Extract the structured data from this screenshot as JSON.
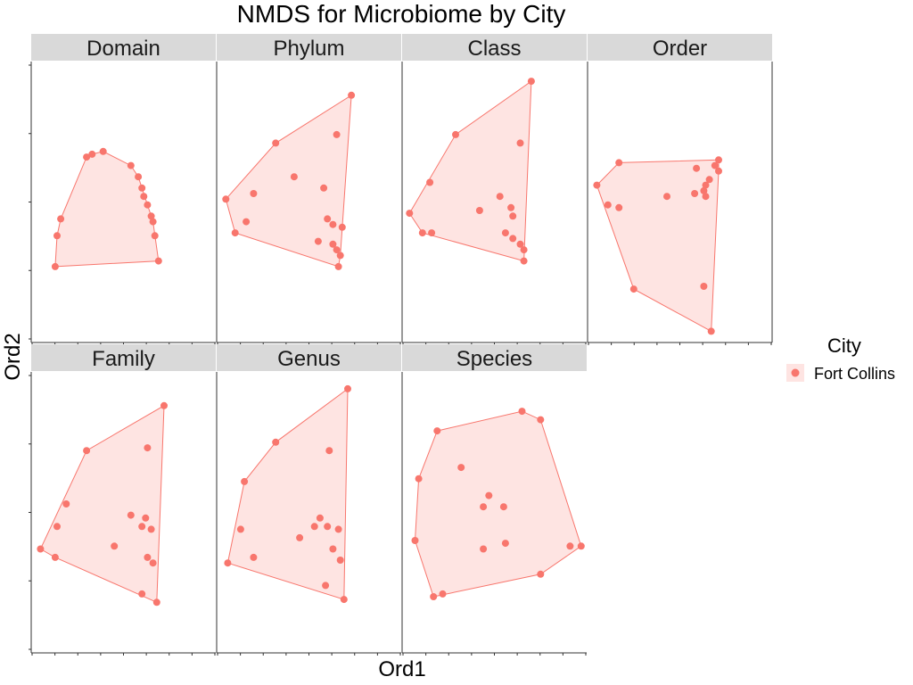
{
  "chart_data": {
    "type": "scatter",
    "title": "NMDS for Microbiome by City",
    "xlabel": "Ord1",
    "ylabel": "Ord2",
    "xlim": [
      0,
      1
    ],
    "ylim": [
      0,
      1
    ],
    "legend": {
      "title": "City",
      "placement": "right",
      "entries": [
        {
          "label": "Fort Collins",
          "color": "#F8766D"
        }
      ]
    },
    "hull_fill": "#F8766D",
    "hull_fill_opacity": 0.2,
    "point_color": "#F8766D",
    "panels": [
      {
        "name": "Domain",
        "points": [
          [
            0.13,
            0.27
          ],
          [
            0.14,
            0.38
          ],
          [
            0.16,
            0.44
          ],
          [
            0.3,
            0.66
          ],
          [
            0.33,
            0.67
          ],
          [
            0.39,
            0.68
          ],
          [
            0.54,
            0.63
          ],
          [
            0.58,
            0.59
          ],
          [
            0.6,
            0.55
          ],
          [
            0.61,
            0.52
          ],
          [
            0.63,
            0.49
          ],
          [
            0.65,
            0.45
          ],
          [
            0.66,
            0.43
          ],
          [
            0.67,
            0.38
          ],
          [
            0.69,
            0.29
          ]
        ]
      },
      {
        "name": "Phylum",
        "points": [
          [
            0.05,
            0.51
          ],
          [
            0.1,
            0.39
          ],
          [
            0.16,
            0.43
          ],
          [
            0.2,
            0.53
          ],
          [
            0.32,
            0.71
          ],
          [
            0.42,
            0.59
          ],
          [
            0.58,
            0.55
          ],
          [
            0.6,
            0.44
          ],
          [
            0.63,
            0.42
          ],
          [
            0.55,
            0.36
          ],
          [
            0.63,
            0.35
          ],
          [
            0.65,
            0.33
          ],
          [
            0.68,
            0.41
          ],
          [
            0.67,
            0.31
          ],
          [
            0.66,
            0.27
          ],
          [
            0.65,
            0.74
          ],
          [
            0.73,
            0.88
          ]
        ]
      },
      {
        "name": "Class",
        "points": [
          [
            0.04,
            0.46
          ],
          [
            0.11,
            0.39
          ],
          [
            0.16,
            0.39
          ],
          [
            0.15,
            0.57
          ],
          [
            0.29,
            0.74
          ],
          [
            0.42,
            0.47
          ],
          [
            0.53,
            0.52
          ],
          [
            0.56,
            0.39
          ],
          [
            0.59,
            0.48
          ],
          [
            0.6,
            0.45
          ],
          [
            0.6,
            0.37
          ],
          [
            0.64,
            0.35
          ],
          [
            0.66,
            0.33
          ],
          [
            0.66,
            0.29
          ],
          [
            0.64,
            0.71
          ],
          [
            0.7,
            0.93
          ]
        ]
      },
      {
        "name": "Order",
        "points": [
          [
            0.05,
            0.56
          ],
          [
            0.11,
            0.49
          ],
          [
            0.17,
            0.48
          ],
          [
            0.17,
            0.64
          ],
          [
            0.43,
            0.52
          ],
          [
            0.58,
            0.53
          ],
          [
            0.59,
            0.62
          ],
          [
            0.63,
            0.54
          ],
          [
            0.64,
            0.52
          ],
          [
            0.64,
            0.56
          ],
          [
            0.66,
            0.58
          ],
          [
            0.69,
            0.63
          ],
          [
            0.71,
            0.65
          ],
          [
            0.71,
            0.61
          ],
          [
            0.25,
            0.19
          ],
          [
            0.63,
            0.2
          ],
          [
            0.67,
            0.04
          ]
        ]
      },
      {
        "name": "Family",
        "points": [
          [
            0.05,
            0.37
          ],
          [
            0.13,
            0.34
          ],
          [
            0.14,
            0.45
          ],
          [
            0.19,
            0.53
          ],
          [
            0.3,
            0.72
          ],
          [
            0.45,
            0.38
          ],
          [
            0.54,
            0.49
          ],
          [
            0.6,
            0.45
          ],
          [
            0.62,
            0.48
          ],
          [
            0.65,
            0.44
          ],
          [
            0.63,
            0.34
          ],
          [
            0.66,
            0.32
          ],
          [
            0.6,
            0.21
          ],
          [
            0.63,
            0.73
          ],
          [
            0.68,
            0.18
          ],
          [
            0.72,
            0.88
          ]
        ]
      },
      {
        "name": "Genus",
        "points": [
          [
            0.06,
            0.32
          ],
          [
            0.13,
            0.44
          ],
          [
            0.15,
            0.61
          ],
          [
            0.2,
            0.34
          ],
          [
            0.32,
            0.75
          ],
          [
            0.45,
            0.41
          ],
          [
            0.53,
            0.45
          ],
          [
            0.56,
            0.48
          ],
          [
            0.6,
            0.45
          ],
          [
            0.63,
            0.37
          ],
          [
            0.66,
            0.44
          ],
          [
            0.67,
            0.33
          ],
          [
            0.59,
            0.24
          ],
          [
            0.61,
            0.72
          ],
          [
            0.69,
            0.19
          ],
          [
            0.71,
            0.94
          ]
        ]
      },
      {
        "name": "Species",
        "points": [
          [
            0.07,
            0.4
          ],
          [
            0.09,
            0.62
          ],
          [
            0.19,
            0.79
          ],
          [
            0.32,
            0.66
          ],
          [
            0.44,
            0.52
          ],
          [
            0.47,
            0.56
          ],
          [
            0.55,
            0.52
          ],
          [
            0.56,
            0.39
          ],
          [
            0.44,
            0.37
          ],
          [
            0.65,
            0.86
          ],
          [
            0.75,
            0.83
          ],
          [
            0.75,
            0.28
          ],
          [
            0.91,
            0.38
          ],
          [
            0.97,
            0.38
          ],
          [
            0.17,
            0.2
          ],
          [
            0.22,
            0.21
          ]
        ]
      }
    ]
  }
}
